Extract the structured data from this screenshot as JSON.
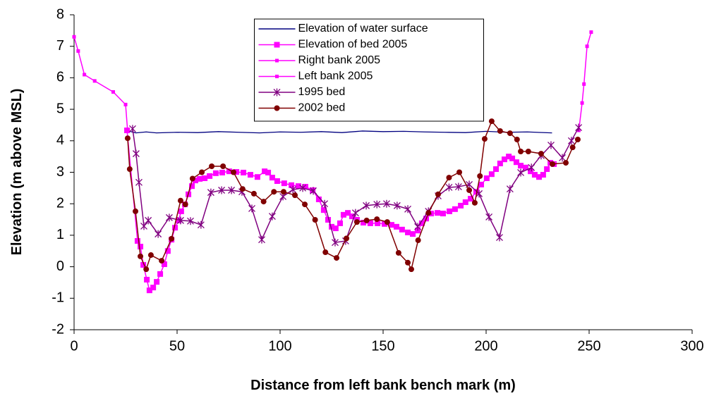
{
  "chart_data": {
    "type": "line",
    "x_label": "Distance from left bank bench mark (m)",
    "y_label": "Elevation (m above MSL)",
    "xlim": [
      0,
      300
    ],
    "xticks": [
      0,
      50,
      100,
      150,
      200,
      250,
      300
    ],
    "ylim": [
      -2,
      8
    ],
    "yticks": [
      -2,
      -1,
      0,
      1,
      2,
      3,
      4,
      5,
      6,
      7,
      8
    ],
    "grid": false,
    "legend": "top",
    "series": [
      {
        "name": "Elevation of water surface",
        "color": "#000080",
        "marker": "none",
        "x": [
          27,
          30,
          35,
          40,
          50,
          60,
          70,
          80,
          90,
          100,
          110,
          120,
          130,
          140,
          150,
          160,
          170,
          180,
          190,
          200,
          210,
          220,
          232
        ],
        "values": [
          4.3,
          4.25,
          4.28,
          4.25,
          4.27,
          4.26,
          4.29,
          4.27,
          4.25,
          4.28,
          4.27,
          4.29,
          4.26,
          4.31,
          4.29,
          4.3,
          4.28,
          4.27,
          4.26,
          4.3,
          4.27,
          4.28,
          4.25
        ]
      },
      {
        "name": "Elevation of bed 2005",
        "color": "#ff00ff",
        "marker": "square",
        "x": [
          25.7,
          30.8,
          32.2,
          33.6,
          35.3,
          36.6,
          38.4,
          40.1,
          41.8,
          43.8,
          45.5,
          47.3,
          49,
          50.7,
          52,
          53.8,
          55.5,
          57.2,
          58.9,
          61,
          63.4,
          65.8,
          68.8,
          71.9,
          75.3,
          78.8,
          82.2,
          85.6,
          89,
          92.5,
          94.2,
          96.2,
          98.6,
          102,
          105.5,
          108.9,
          112.3,
          115.8,
          118.8,
          121.2,
          123.3,
          125,
          127,
          129.1,
          130.8,
          132.9,
          134.9,
          137.3,
          140.4,
          143.8,
          147.3,
          150.7,
          154.1,
          156.5,
          159.2,
          162,
          164.4,
          166.8,
          168.8,
          170.9,
          173.3,
          176.4,
          179.1,
          182.2,
          184.9,
          187.7,
          190,
          192.5,
          195.2,
          197.6,
          200.3,
          202.7,
          204.8,
          206.8,
          208.9,
          211,
          212.7,
          214.7,
          216.8,
          219.2,
          221.6,
          223.6,
          225.7,
          227.7,
          229.5,
          231.2,
          232.9
        ],
        "values": [
          4.33,
          0.82,
          0.64,
          0.06,
          -0.41,
          -0.75,
          -0.66,
          -0.48,
          -0.23,
          0.08,
          0.5,
          0.86,
          1.24,
          1.47,
          1.76,
          1.98,
          2.3,
          2.56,
          2.74,
          2.79,
          2.81,
          2.88,
          2.97,
          2.99,
          3.03,
          3.01,
          2.99,
          2.92,
          2.85,
          3.03,
          2.99,
          2.83,
          2.72,
          2.65,
          2.59,
          2.56,
          2.54,
          2.43,
          2.14,
          1.8,
          1.49,
          1.27,
          1.22,
          1.38,
          1.65,
          1.71,
          1.6,
          1.49,
          1.4,
          1.38,
          1.38,
          1.36,
          1.33,
          1.27,
          1.18,
          1.09,
          1.04,
          1.15,
          1.38,
          1.53,
          1.69,
          1.71,
          1.69,
          1.76,
          1.83,
          1.94,
          2.05,
          2.16,
          2.38,
          2.61,
          2.81,
          2.94,
          3.1,
          3.28,
          3.41,
          3.5,
          3.44,
          3.32,
          3.21,
          3.15,
          3.03,
          2.92,
          2.85,
          2.92,
          3.1,
          3.3,
          3.26
        ]
      },
      {
        "name": "Right bank 2005",
        "color": "#ff00ff",
        "marker": "small-square",
        "x": [
          245,
          246.6,
          247.5,
          249,
          251
        ],
        "values": [
          4.33,
          5.2,
          5.8,
          7.0,
          7.45
        ]
      },
      {
        "name": "Left bank 2005",
        "color": "#ff00ff",
        "marker": "small-square",
        "x": [
          0,
          2,
          5,
          10,
          19,
          25,
          26
        ],
        "values": [
          7.3,
          6.85,
          6.1,
          5.9,
          5.55,
          5.15,
          4.3
        ]
      },
      {
        "name": "1995 bed",
        "color": "#800080",
        "marker": "star",
        "x": [
          28.4,
          30.1,
          31.5,
          33.9,
          36,
          40.8,
          46.2,
          51.7,
          56.5,
          61.6,
          66.4,
          71.6,
          76.4,
          81.5,
          86.3,
          91.1,
          96.2,
          101.4,
          106.2,
          111,
          116.1,
          121.6,
          126.7,
          131.8,
          136.6,
          141.8,
          147,
          151.7,
          156.8,
          162,
          166.8,
          172,
          176.7,
          182,
          186.6,
          191.8,
          196.6,
          201.4,
          206.5,
          211.6,
          216.8,
          222,
          226.7,
          231.5,
          237,
          241.4,
          244.9
        ],
        "values": [
          4.38,
          3.59,
          2.68,
          1.29,
          1.47,
          1.04,
          1.56,
          1.47,
          1.45,
          1.33,
          2.36,
          2.43,
          2.43,
          2.38,
          1.85,
          0.86,
          1.6,
          2.23,
          2.45,
          2.5,
          2.41,
          2.0,
          0.77,
          0.82,
          1.71,
          1.94,
          1.98,
          2.0,
          1.94,
          1.83,
          1.27,
          1.76,
          2.25,
          2.52,
          2.54,
          2.61,
          2.32,
          1.58,
          0.93,
          2.47,
          2.99,
          3.15,
          3.53,
          3.86,
          3.46,
          4.0,
          4.42
        ]
      },
      {
        "name": "2002 bed",
        "color": "#800000",
        "marker": "circle",
        "x": [
          26,
          27,
          29.8,
          32.2,
          35,
          37.3,
          42.5,
          47.3,
          51.7,
          54,
          57.5,
          62,
          66.8,
          72.3,
          77.4,
          81.8,
          87.3,
          92,
          97,
          101.7,
          107.2,
          112,
          117,
          122,
          127.4,
          132.2,
          137.3,
          142,
          147,
          152,
          157.5,
          162,
          163.7,
          167,
          172,
          176.7,
          182,
          187,
          191.8,
          194.5,
          197,
          199.3,
          202.7,
          206.8,
          211.6,
          215,
          216.8,
          220.5,
          226.7,
          232.2,
          238.7,
          242,
          244.5
        ],
        "values": [
          4.08,
          3.1,
          1.76,
          0.33,
          -0.08,
          0.37,
          0.19,
          0.89,
          2.1,
          1.98,
          2.8,
          3.0,
          3.19,
          3.19,
          3.0,
          2.47,
          2.32,
          2.07,
          2.38,
          2.38,
          2.27,
          1.98,
          1.49,
          0.46,
          0.28,
          0.9,
          1.42,
          1.47,
          1.51,
          1.42,
          0.44,
          0.13,
          -0.08,
          0.84,
          1.71,
          2.3,
          2.83,
          3.0,
          2.43,
          2.03,
          2.88,
          4.06,
          4.62,
          4.31,
          4.24,
          4.04,
          3.66,
          3.66,
          3.59,
          3.26,
          3.3,
          3.79,
          4.04
        ]
      }
    ]
  }
}
